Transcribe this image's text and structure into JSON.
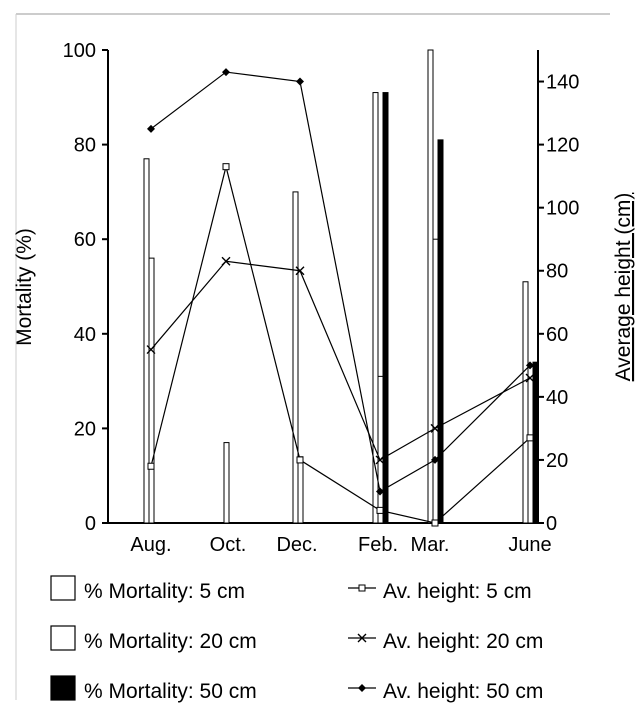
{
  "chart_data": {
    "type": "bar",
    "categories": [
      "Aug.",
      "Oct.",
      "Dec.",
      "Feb.",
      "Mar.",
      "June"
    ],
    "ylabel": "Mortality (%)",
    "ylim": [
      0,
      100
    ],
    "yticks": [
      "0",
      "20",
      "40",
      "60",
      "80",
      "100"
    ],
    "y2label": "Average height (cm)",
    "y2lim": [
      0,
      150
    ],
    "y2ticks": [
      "0",
      "20",
      "40",
      "60",
      "80",
      "100",
      "120",
      "140"
    ],
    "bar_series": [
      {
        "name": "% Mortality: 5 cm",
        "fill": "#ffffff",
        "values": [
          77,
          0,
          70,
          91,
          100,
          51
        ]
      },
      {
        "name": "% Mortality: 20 cm",
        "fill": "#ffffff",
        "values": [
          56,
          17,
          14,
          31,
          60,
          18
        ]
      },
      {
        "name": "% Mortality: 50 cm",
        "fill": "#000000",
        "values": [
          null,
          null,
          null,
          91,
          81,
          34
        ]
      }
    ],
    "line_series": [
      {
        "name": "Av. height: 5 cm",
        "marker": "square",
        "values": [
          18,
          113,
          20,
          4,
          0,
          27
        ]
      },
      {
        "name": "Av. height: 20 cm",
        "marker": "x",
        "values": [
          55,
          83,
          80,
          20,
          30,
          46
        ]
      },
      {
        "name": "Av. height: 50 cm",
        "marker": "diamond",
        "values": [
          125,
          143,
          140,
          10,
          20,
          50
        ]
      }
    ],
    "legend_position": "bottom",
    "grid": false
  },
  "colors": {
    "ink": "#000000",
    "paper": "#ffffff"
  }
}
